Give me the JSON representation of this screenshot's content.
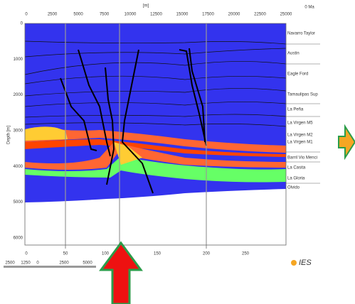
{
  "top_axis": {
    "unit": "[m]",
    "age": "0 Ma",
    "ticks": [
      "0",
      "2500",
      "5000",
      "7500",
      "10000",
      "12500",
      "15000",
      "17500",
      "20000",
      "22500",
      "25000"
    ]
  },
  "left_axis": {
    "label": "Depth [m]",
    "ticks": [
      "0",
      "1000",
      "2000",
      "3000",
      "4000",
      "5000",
      "6000"
    ]
  },
  "bottom_axis": {
    "ticks": [
      "0",
      "50",
      "100",
      "150",
      "200",
      "250"
    ]
  },
  "scale_bar": {
    "labels": [
      "2500",
      "1250",
      "0",
      "2500",
      "5000"
    ]
  },
  "layers": [
    "Navarro Taylor",
    "Austin",
    "Eagle Ford",
    "Tamaulipas Sup",
    "La Peña",
    "La Virgen M5",
    "La Virgen M2",
    "La Virgen M1",
    "Barril Vio Menci",
    "La Casita",
    "La Gloria",
    "Olvido"
  ],
  "logo": "IES"
}
